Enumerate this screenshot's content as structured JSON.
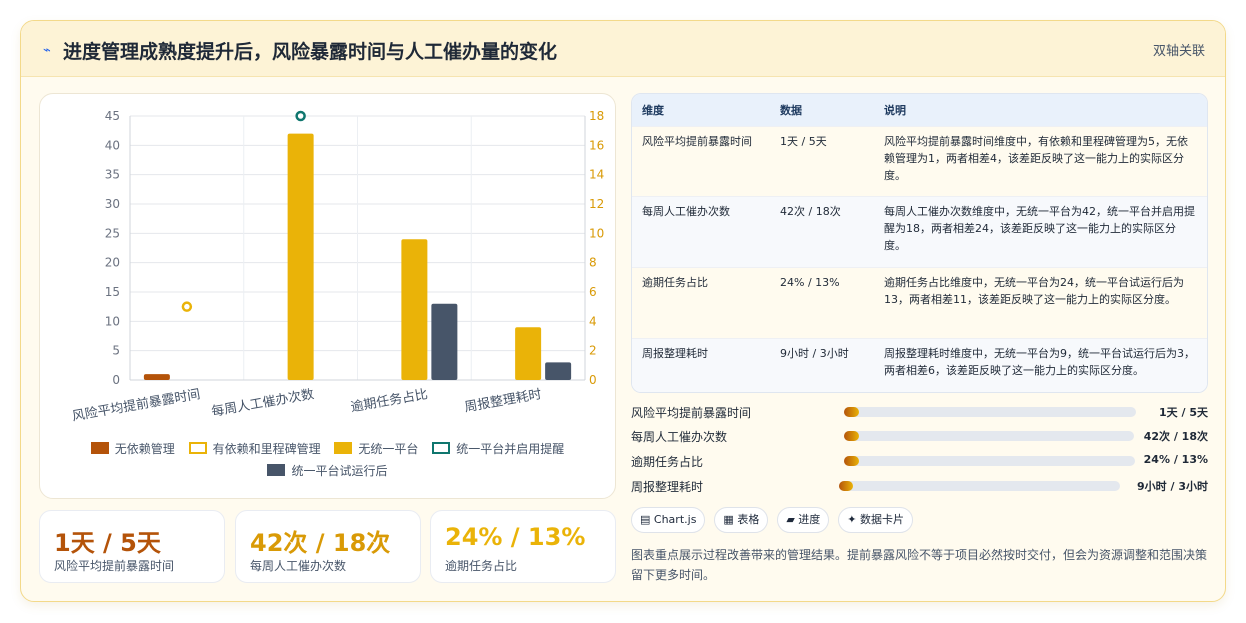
{
  "header": {
    "icon": "lightning-icon",
    "title": "进度管理成熟度提升后，风险暴露时间与人工催办量的变化",
    "badge": "双轴关联"
  },
  "colors": {
    "brown": "#b45309",
    "gold": "#eab308",
    "teal": "#0f766e",
    "slate": "#475569"
  },
  "chart_data": {
    "type": "bar",
    "categories": [
      "风险平均提前暴露时间",
      "每周人工催办次数",
      "逾期任务占比",
      "周报整理耗时"
    ],
    "left_axis": {
      "min": 0,
      "max": 45,
      "ticks": [
        0,
        5,
        10,
        15,
        20,
        25,
        30,
        35,
        40,
        45
      ]
    },
    "right_axis": {
      "min": 0,
      "max": 18,
      "ticks": [
        0,
        2,
        4,
        6,
        8,
        10,
        12,
        14,
        16,
        18
      ]
    },
    "series": [
      {
        "name": "无依赖管理",
        "type": "bar",
        "axis": "left",
        "values": [
          1,
          null,
          null,
          null
        ]
      },
      {
        "name": "有依赖和里程碑管理",
        "type": "point",
        "axis": "right",
        "values": [
          5,
          null,
          null,
          null
        ]
      },
      {
        "name": "无统一平台",
        "type": "bar",
        "axis": "left",
        "values": [
          null,
          42,
          24,
          9
        ]
      },
      {
        "name": "统一平台并启用提醒",
        "type": "point",
        "axis": "right",
        "values": [
          null,
          18,
          null,
          null
        ]
      },
      {
        "name": "统一平台试运行后",
        "type": "bar",
        "axis": "left",
        "values": [
          null,
          null,
          13,
          3
        ]
      }
    ],
    "grid": true,
    "legend": "bottom"
  },
  "legend": [
    {
      "label": "无依赖管理"
    },
    {
      "label": "有依赖和里程碑管理"
    },
    {
      "label": "无统一平台"
    },
    {
      "label": "统一平台并启用提醒"
    },
    {
      "label": "统一平台试运行后"
    }
  ],
  "stats": [
    {
      "value": "1天 / 5天",
      "label": "风险平均提前暴露时间"
    },
    {
      "value": "42次 / 18次",
      "label": "每周人工催办次数"
    },
    {
      "value": "24% / 13%",
      "label": "逾期任务占比"
    }
  ],
  "table": {
    "headers": [
      "维度",
      "数据",
      "说明"
    ],
    "rows": [
      {
        "dim": "风险平均提前暴露时间",
        "data": "1天 / 5天",
        "desc": "风险平均提前暴露时间维度中，有依赖和里程碑管理为5，无依赖管理为1，两者相差4，该差距反映了这一能力上的实际区分度。"
      },
      {
        "dim": "每周人工催办次数",
        "data": "42次 / 18次",
        "desc": "每周人工催办次数维度中，无统一平台为42，统一平台并启用提醒为18，两者相差24，该差距反映了这一能力上的实际区分度。"
      },
      {
        "dim": "逾期任务占比",
        "data": "24% / 13%",
        "desc": "逾期任务占比维度中，无统一平台为24，统一平台试运行后为13，两者相差11，该差距反映了这一能力上的实际区分度。"
      },
      {
        "dim": "周报整理耗时",
        "data": "9小时 / 3小时",
        "desc": "周报整理耗时维度中，无统一平台为9，统一平台试运行后为3，两者相差6，该差距反映了这一能力上的实际区分度。"
      }
    ]
  },
  "progress": [
    {
      "label": "风险平均提前暴露时间",
      "value": "1天 / 5天",
      "fraction": 0.05
    },
    {
      "label": "每周人工催办次数",
      "value": "42次 / 18次",
      "fraction": 0.05
    },
    {
      "label": "逾期任务占比",
      "value": "24% / 13%",
      "fraction": 0.05
    },
    {
      "label": "周报整理耗时",
      "value": "9小时 / 3小时",
      "fraction": 0.05
    }
  ],
  "chips": [
    {
      "icon": "chart-icon",
      "label": "Chart.js"
    },
    {
      "icon": "table-icon",
      "label": "表格"
    },
    {
      "icon": "progress-icon",
      "label": "进度"
    },
    {
      "icon": "sparkle-icon",
      "label": "数据卡片"
    }
  ],
  "note": "图表重点展示过程改善带来的管理结果。提前暴露风险不等于项目必然按时交付，但会为资源调整和范围决策留下更多时间。"
}
